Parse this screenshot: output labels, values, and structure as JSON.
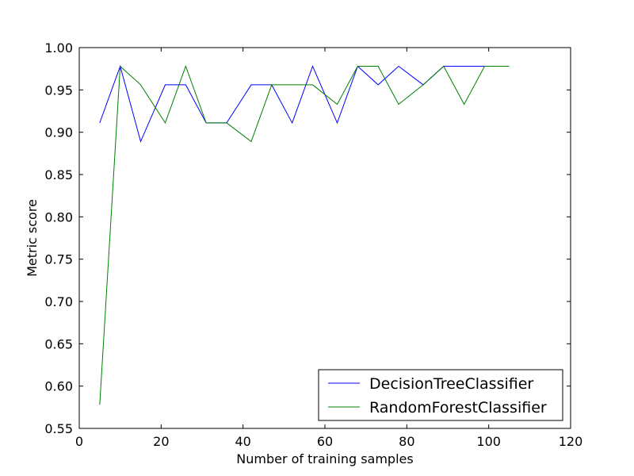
{
  "chart_data": {
    "type": "line",
    "title": "",
    "xlabel": "Number of training samples",
    "ylabel": "Metric score",
    "xlim": [
      0,
      120
    ],
    "ylim": [
      0.55,
      1.0
    ],
    "xticks": [
      0,
      20,
      40,
      60,
      80,
      100,
      120
    ],
    "xtick_labels": [
      "0",
      "20",
      "40",
      "60",
      "80",
      "100",
      "120"
    ],
    "yticks": [
      0.55,
      0.6,
      0.65,
      0.7,
      0.75,
      0.8,
      0.85,
      0.9,
      0.95,
      1.0
    ],
    "ytick_labels": [
      "0.55",
      "0.60",
      "0.65",
      "0.70",
      "0.75",
      "0.80",
      "0.85",
      "0.90",
      "0.95",
      "1.00"
    ],
    "grid": false,
    "legend_position": "lower-right",
    "x": [
      5,
      10,
      15,
      21,
      26,
      31,
      36,
      42,
      47,
      52,
      57,
      63,
      68,
      73,
      78,
      84,
      89,
      94,
      99,
      105
    ],
    "series": [
      {
        "name": "DecisionTreeClassifier",
        "color": "#0000ff",
        "values": [
          0.911,
          0.978,
          0.889,
          0.956,
          0.956,
          0.911,
          0.911,
          0.956,
          0.956,
          0.911,
          0.978,
          0.911,
          0.978,
          0.956,
          0.978,
          0.956,
          0.978,
          0.978,
          0.978,
          0.978
        ]
      },
      {
        "name": "RandomForestClassifier",
        "color": "#008000",
        "values": [
          0.578,
          0.978,
          0.956,
          0.911,
          0.978,
          0.911,
          0.911,
          0.889,
          0.956,
          0.956,
          0.956,
          0.933,
          0.978,
          0.978,
          0.933,
          0.956,
          0.978,
          0.933,
          0.978,
          0.978
        ]
      }
    ]
  }
}
